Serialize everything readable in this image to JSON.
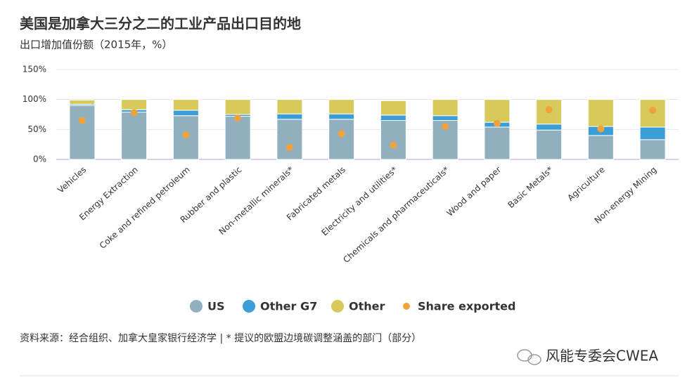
{
  "chart_data": {
    "type": "bar",
    "stacked": true,
    "title": "美国是加拿大三分之二的工业产品出口目的地",
    "subtitle": "出口增加值份额（2015年，%）",
    "categories": [
      "Vehicles",
      "Energy Extraction",
      "Coke and refined petroleum",
      "Rubber and plastic",
      "Non-metallic minerals*",
      "Fabricated metals",
      "Electricity and utilities*",
      "Chemicals and pharmaceuticals*",
      "Wood and paper",
      "Basic Metals*",
      "Agriculture",
      "Non-energy Mining"
    ],
    "series": [
      {
        "name": "US",
        "color": "#90b0c0",
        "values": [
          90,
          79,
          73,
          72,
          67,
          67,
          65,
          65,
          54,
          49,
          40,
          33
        ]
      },
      {
        "name": "Other G7",
        "color": "#3c9ed6",
        "values": [
          2,
          4,
          9,
          3,
          9,
          9,
          9,
          8,
          8,
          10,
          15,
          21
        ]
      },
      {
        "name": "Other",
        "color": "#d8ca5a",
        "values": [
          7,
          17,
          18,
          25,
          24,
          24,
          24,
          27,
          38,
          41,
          45,
          46
        ]
      },
      {
        "name": "Share exported",
        "color": "#f2a23a",
        "type": "scatter",
        "values": [
          65,
          78,
          41,
          69,
          20,
          43,
          24,
          55,
          60,
          83,
          51,
          82
        ]
      }
    ],
    "ylim": [
      0,
      150
    ],
    "yticks": [
      {
        "value": 0,
        "label": "0%"
      },
      {
        "value": 50,
        "label": "50%"
      },
      {
        "value": 100,
        "label": "100%"
      },
      {
        "value": 150,
        "label": "150%"
      }
    ],
    "grid": true,
    "legend": "bottom",
    "source": "资料来源：经合组织、加拿大皇家银行经济学 | * 提议的欧盟边境碳调整涵盖的部门（部分）"
  },
  "watermark": "风能专委会CWEA"
}
